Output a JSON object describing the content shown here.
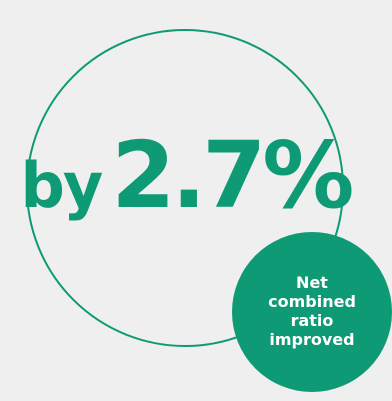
{
  "colors": {
    "accent": "#0f9a76",
    "background": "#efefef",
    "badge_text": "#ffffff"
  },
  "headline": {
    "prefix": "by",
    "value": "2.7%"
  },
  "badge": {
    "label": "Net combined ratio improved"
  }
}
